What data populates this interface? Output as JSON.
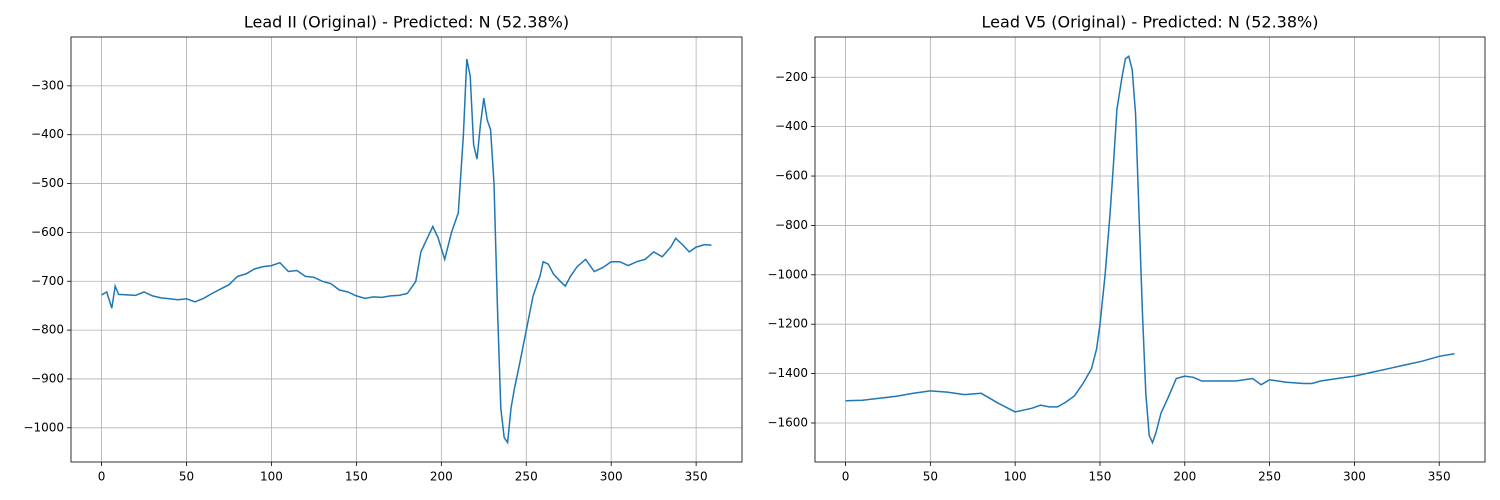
{
  "chart_data": [
    {
      "type": "line",
      "title": "Lead II (Original) - Predicted: N (52.38%)",
      "x": [
        0,
        3,
        6,
        8,
        10,
        15,
        20,
        25,
        30,
        35,
        40,
        45,
        50,
        55,
        60,
        65,
        70,
        75,
        80,
        85,
        90,
        95,
        100,
        105,
        110,
        115,
        120,
        125,
        130,
        135,
        140,
        145,
        150,
        155,
        160,
        165,
        170,
        175,
        180,
        185,
        188,
        192,
        195,
        198,
        202,
        206,
        210,
        213,
        215,
        217,
        219,
        221,
        223,
        225,
        227,
        229,
        231,
        233,
        235,
        237,
        239,
        241,
        243,
        246,
        250,
        254,
        258,
        260,
        263,
        266,
        270,
        273,
        276,
        280,
        285,
        290,
        295,
        300,
        305,
        310,
        315,
        320,
        325,
        330,
        335,
        338,
        342,
        346,
        350,
        355,
        359
      ],
      "series": [
        {
          "name": null,
          "color": "#1f77b4",
          "values": [
            -728,
            -722,
            -755,
            -710,
            -727,
            -728,
            -729,
            -722,
            -730,
            -734,
            -736,
            -738,
            -736,
            -742,
            -735,
            -725,
            -716,
            -707,
            -690,
            -685,
            -675,
            -670,
            -668,
            -662,
            -680,
            -678,
            -690,
            -692,
            -700,
            -705,
            -718,
            -722,
            -730,
            -735,
            -732,
            -733,
            -730,
            -729,
            -725,
            -700,
            -640,
            -610,
            -588,
            -610,
            -655,
            -600,
            -560,
            -400,
            -245,
            -280,
            -420,
            -450,
            -380,
            -325,
            -370,
            -390,
            -500,
            -750,
            -960,
            -1020,
            -1030,
            -960,
            -920,
            -870,
            -800,
            -730,
            -690,
            -660,
            -665,
            -685,
            -700,
            -710,
            -690,
            -670,
            -655,
            -680,
            -672,
            -660,
            -660,
            -668,
            -660,
            -655,
            -640,
            -650,
            -630,
            -612,
            -625,
            -640,
            -630,
            -625,
            -626
          ]
        }
      ],
      "xlim": [
        -18,
        377
      ],
      "xticks": [
        0,
        50,
        100,
        150,
        200,
        250,
        300,
        350
      ],
      "ylim": [
        -1070,
        -200
      ],
      "yticks": [
        {
          "value": -1000,
          "label": "−1000"
        },
        {
          "value": -900,
          "label": "−900"
        },
        {
          "value": -800,
          "label": "−800"
        },
        {
          "value": -700,
          "label": "−700"
        },
        {
          "value": -600,
          "label": "−600"
        },
        {
          "value": -500,
          "label": "−500"
        },
        {
          "value": -400,
          "label": "−400"
        },
        {
          "value": -300,
          "label": "−300"
        }
      ],
      "grid": true
    },
    {
      "type": "line",
      "title": "Lead V5 (Original) - Predicted: N (52.38%)",
      "x": [
        0,
        10,
        20,
        30,
        40,
        50,
        60,
        70,
        80,
        90,
        100,
        110,
        115,
        120,
        125,
        130,
        135,
        140,
        145,
        148,
        150,
        153,
        156,
        158,
        160,
        163,
        165,
        167,
        169,
        171,
        173,
        175,
        177,
        179,
        181,
        183,
        186,
        190,
        195,
        200,
        205,
        210,
        220,
        230,
        240,
        245,
        250,
        260,
        270,
        275,
        280,
        290,
        300,
        310,
        320,
        330,
        340,
        350,
        359
      ],
      "series": [
        {
          "name": null,
          "color": "#1f77b4",
          "values": [
            -1510,
            -1508,
            -1500,
            -1492,
            -1480,
            -1470,
            -1475,
            -1485,
            -1480,
            -1520,
            -1555,
            -1540,
            -1528,
            -1535,
            -1535,
            -1515,
            -1490,
            -1440,
            -1380,
            -1300,
            -1200,
            -1000,
            -750,
            -550,
            -330,
            -200,
            -125,
            -115,
            -170,
            -350,
            -750,
            -1150,
            -1480,
            -1650,
            -1680,
            -1640,
            -1560,
            -1500,
            -1420,
            -1410,
            -1415,
            -1430,
            -1430,
            -1430,
            -1420,
            -1445,
            -1425,
            -1435,
            -1440,
            -1440,
            -1430,
            -1420,
            -1410,
            -1395,
            -1380,
            -1365,
            -1350,
            -1330,
            -1320
          ]
        }
      ],
      "xlim": [
        -18,
        377
      ],
      "xticks": [
        0,
        50,
        100,
        150,
        200,
        250,
        300,
        350
      ],
      "ylim": [
        -1758,
        -37
      ],
      "yticks": [
        {
          "value": -1600,
          "label": "−1600"
        },
        {
          "value": -1400,
          "label": "−1400"
        },
        {
          "value": -1200,
          "label": "−1200"
        },
        {
          "value": -1000,
          "label": "−1000"
        },
        {
          "value": -800,
          "label": "−800"
        },
        {
          "value": -600,
          "label": "−600"
        },
        {
          "value": -400,
          "label": "−400"
        },
        {
          "value": -200,
          "label": "−200"
        }
      ],
      "grid": true
    }
  ]
}
